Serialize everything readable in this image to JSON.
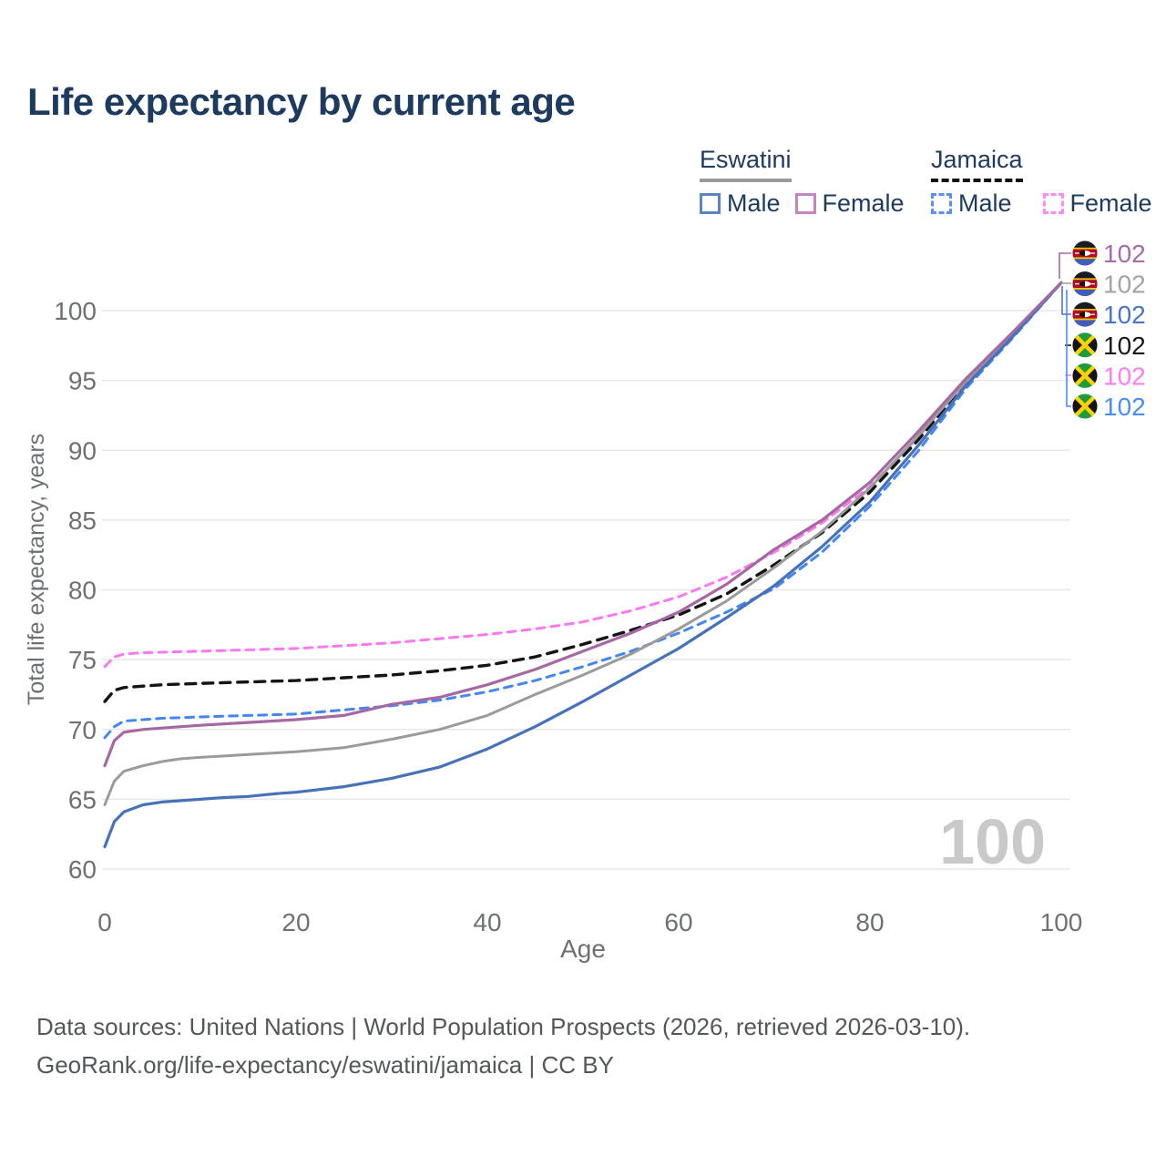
{
  "title": "Life expectancy by current age",
  "legend": {
    "groups": [
      {
        "name": "Eswatini",
        "items": [
          {
            "label": "Male"
          },
          {
            "label": "Female"
          }
        ]
      },
      {
        "name": "Jamaica",
        "items": [
          {
            "label": "Male"
          },
          {
            "label": "Female"
          }
        ]
      }
    ]
  },
  "watermark_age": "100",
  "footer": {
    "line1": "Data sources: United Nations | World Population Prospects (2026, retrieved 2026-03-10).",
    "line2": "GeoRank.org/life-expectancy/eswatini/jamaica | CC BY"
  },
  "chart_data": {
    "type": "line",
    "title": "Life expectancy by current age",
    "xlabel": "Age",
    "ylabel": "Total life expectancy, years",
    "xlim": [
      0,
      100
    ],
    "ylim": [
      60,
      100
    ],
    "grid": true,
    "x_ticks": [
      0,
      20,
      40,
      60,
      80,
      100
    ],
    "y_ticks": [
      100,
      95,
      90,
      85,
      80,
      75,
      70,
      65,
      60
    ],
    "legend_position": "top-right",
    "hovered_age": 100,
    "series": [
      {
        "name": "Jamaica Female",
        "country": "Jamaica",
        "sex": "Female",
        "style": "dashed",
        "color": "#fb78f0",
        "dash": "9 7",
        "width": 3,
        "end_value": 102,
        "points": [
          [
            0,
            74.5
          ],
          [
            1,
            75.2
          ],
          [
            2,
            75.4
          ],
          [
            4,
            75.5
          ],
          [
            10,
            75.6
          ],
          [
            15,
            75.7
          ],
          [
            20,
            75.8
          ],
          [
            25,
            76.0
          ],
          [
            30,
            76.2
          ],
          [
            35,
            76.5
          ],
          [
            40,
            76.8
          ],
          [
            45,
            77.2
          ],
          [
            50,
            77.7
          ],
          [
            55,
            78.5
          ],
          [
            60,
            79.5
          ],
          [
            65,
            80.9
          ],
          [
            70,
            82.7
          ],
          [
            75,
            84.8
          ],
          [
            80,
            87.4
          ],
          [
            85,
            90.9
          ],
          [
            90,
            94.9
          ],
          [
            95,
            98.4
          ],
          [
            100,
            102
          ]
        ]
      },
      {
        "name": "Jamaica Both sexes",
        "country": "Jamaica",
        "sex": "Both",
        "style": "dashed",
        "color": "#141414",
        "dash": "11 8",
        "width": 3.4,
        "end_value": 102,
        "points": [
          [
            0,
            72.0
          ],
          [
            1,
            72.8
          ],
          [
            2,
            73.0
          ],
          [
            4,
            73.1
          ],
          [
            6,
            73.2
          ],
          [
            10,
            73.3
          ],
          [
            15,
            73.4
          ],
          [
            20,
            73.5
          ],
          [
            25,
            73.7
          ],
          [
            30,
            73.9
          ],
          [
            35,
            74.2
          ],
          [
            40,
            74.6
          ],
          [
            45,
            75.2
          ],
          [
            50,
            76.1
          ],
          [
            55,
            77.1
          ],
          [
            60,
            78.2
          ],
          [
            65,
            79.7
          ],
          [
            70,
            81.8
          ],
          [
            75,
            84.1
          ],
          [
            80,
            87.0
          ],
          [
            85,
            90.7
          ],
          [
            90,
            94.8
          ],
          [
            95,
            98.3
          ],
          [
            100,
            102
          ]
        ]
      },
      {
        "name": "Jamaica Male",
        "country": "Jamaica",
        "sex": "Male",
        "style": "dashed",
        "color": "#4487f2",
        "dash": "9 7",
        "width": 3,
        "end_value": 102,
        "points": [
          [
            0,
            69.4
          ],
          [
            1,
            70.2
          ],
          [
            2,
            70.6
          ],
          [
            4,
            70.7
          ],
          [
            6,
            70.8
          ],
          [
            10,
            70.9
          ],
          [
            15,
            71.0
          ],
          [
            20,
            71.1
          ],
          [
            25,
            71.4
          ],
          [
            30,
            71.7
          ],
          [
            35,
            72.1
          ],
          [
            40,
            72.7
          ],
          [
            45,
            73.5
          ],
          [
            50,
            74.5
          ],
          [
            55,
            75.6
          ],
          [
            60,
            76.9
          ],
          [
            65,
            78.4
          ],
          [
            70,
            80.1
          ],
          [
            75,
            82.7
          ],
          [
            80,
            86.0
          ],
          [
            85,
            89.9
          ],
          [
            90,
            94.4
          ],
          [
            95,
            98.1
          ],
          [
            100,
            102
          ]
        ]
      },
      {
        "name": "Eswatini Both sexes",
        "country": "Eswatini",
        "sex": "Both",
        "style": "solid",
        "color": "#9b9b9b",
        "dash": null,
        "width": 3,
        "end_value": 102,
        "points": [
          [
            0,
            64.6
          ],
          [
            1,
            66.3
          ],
          [
            2,
            67.0
          ],
          [
            4,
            67.4
          ],
          [
            6,
            67.7
          ],
          [
            8,
            67.9
          ],
          [
            10,
            68.0
          ],
          [
            15,
            68.2
          ],
          [
            20,
            68.4
          ],
          [
            25,
            68.7
          ],
          [
            30,
            69.3
          ],
          [
            35,
            70.0
          ],
          [
            40,
            71.0
          ],
          [
            45,
            72.5
          ],
          [
            50,
            73.9
          ],
          [
            55,
            75.4
          ],
          [
            60,
            77.2
          ],
          [
            65,
            79.2
          ],
          [
            70,
            81.6
          ],
          [
            75,
            84.2
          ],
          [
            80,
            87.3
          ],
          [
            85,
            91.0
          ],
          [
            90,
            94.9
          ],
          [
            95,
            98.4
          ],
          [
            100,
            102
          ]
        ]
      },
      {
        "name": "Eswatini Male",
        "country": "Eswatini",
        "sex": "Male",
        "style": "solid",
        "color": "#4572b9",
        "dash": null,
        "width": 3.2,
        "end_value": 102,
        "points": [
          [
            0,
            61.6
          ],
          [
            1,
            63.4
          ],
          [
            2,
            64.1
          ],
          [
            4,
            64.6
          ],
          [
            6,
            64.8
          ],
          [
            8,
            64.9
          ],
          [
            10,
            65.0
          ],
          [
            12,
            65.1
          ],
          [
            15,
            65.2
          ],
          [
            18,
            65.4
          ],
          [
            20,
            65.5
          ],
          [
            25,
            65.9
          ],
          [
            30,
            66.5
          ],
          [
            35,
            67.3
          ],
          [
            40,
            68.6
          ],
          [
            45,
            70.2
          ],
          [
            50,
            72.0
          ],
          [
            55,
            73.9
          ],
          [
            60,
            75.8
          ],
          [
            65,
            78.0
          ],
          [
            70,
            80.3
          ],
          [
            75,
            83.1
          ],
          [
            80,
            86.3
          ],
          [
            85,
            90.3
          ],
          [
            90,
            94.6
          ],
          [
            95,
            98.2
          ],
          [
            100,
            102
          ]
        ]
      },
      {
        "name": "Eswatini Female",
        "country": "Eswatini",
        "sex": "Female",
        "style": "solid",
        "color": "#a668a2",
        "dash": null,
        "width": 3.2,
        "end_value": 102,
        "points": [
          [
            0,
            67.4
          ],
          [
            1,
            69.2
          ],
          [
            2,
            69.8
          ],
          [
            4,
            70.0
          ],
          [
            6,
            70.1
          ],
          [
            8,
            70.2
          ],
          [
            10,
            70.3
          ],
          [
            15,
            70.5
          ],
          [
            20,
            70.7
          ],
          [
            25,
            71.0
          ],
          [
            30,
            71.8
          ],
          [
            35,
            72.3
          ],
          [
            40,
            73.2
          ],
          [
            45,
            74.3
          ],
          [
            50,
            75.6
          ],
          [
            55,
            76.9
          ],
          [
            60,
            78.4
          ],
          [
            65,
            80.4
          ],
          [
            70,
            82.9
          ],
          [
            75,
            85.0
          ],
          [
            80,
            87.7
          ],
          [
            85,
            91.3
          ],
          [
            90,
            95.1
          ],
          [
            95,
            98.5
          ],
          [
            100,
            102
          ]
        ]
      }
    ]
  },
  "annotations": {
    "rows": [
      {
        "flag": "eswatini",
        "series": "Eswatini Female",
        "value": "102",
        "color": "#a76ba6"
      },
      {
        "flag": "eswatini",
        "series": "Eswatini Both sexes",
        "value": "102",
        "color": "#a3a3a3"
      },
      {
        "flag": "eswatini",
        "series": "Eswatini Male",
        "value": "102",
        "color": "#4b74c9"
      },
      {
        "flag": "jamaica",
        "series": "Jamaica Both sexes",
        "value": "102",
        "color": "#1a1a1a"
      },
      {
        "flag": "jamaica",
        "series": "Jamaica Female",
        "value": "102",
        "color": "#fb7df5"
      },
      {
        "flag": "jamaica",
        "series": "Jamaica Male",
        "value": "102",
        "color": "#4a8df2"
      }
    ]
  },
  "colors": {
    "title": "#1d3a5f",
    "axis_text": "#6d7175",
    "gridline": "#e8e8e8",
    "watermark": "#c9c9c9",
    "footer_text": "#54575a"
  }
}
